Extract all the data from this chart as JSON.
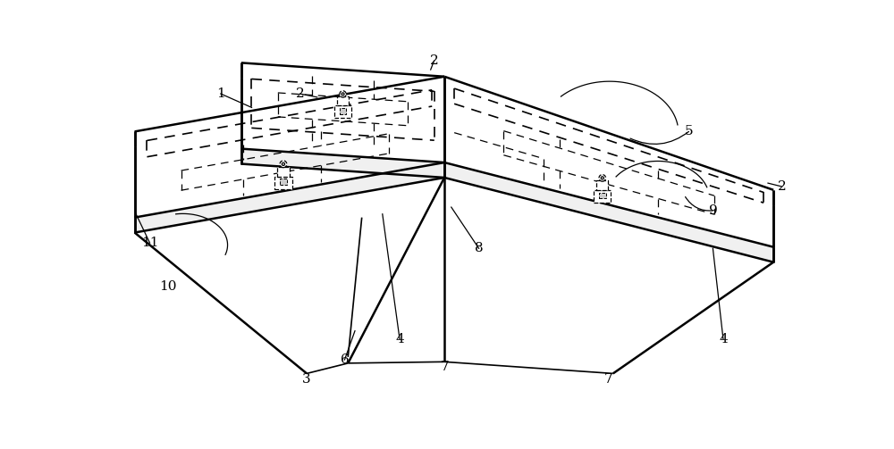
{
  "bg_color": "#ffffff",
  "line_color": "#000000",
  "fig_w": 10.0,
  "fig_h": 5.03,
  "lw_thick": 1.8,
  "lw_med": 1.2,
  "lw_thin": 0.9
}
